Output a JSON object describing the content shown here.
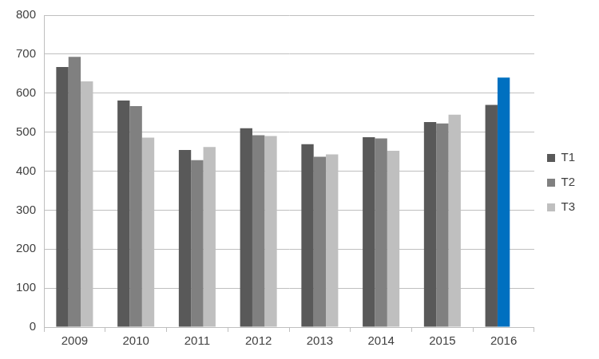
{
  "chart_data": {
    "type": "bar",
    "categories": [
      "2009",
      "2010",
      "2011",
      "2012",
      "2013",
      "2014",
      "2015",
      "2016"
    ],
    "series": [
      {
        "name": "T1",
        "color": "#595959",
        "values": [
          667,
          581,
          454,
          510,
          469,
          487,
          526,
          570
        ]
      },
      {
        "name": "T2",
        "color": "#808080",
        "colors": [
          "#808080",
          "#808080",
          "#808080",
          "#808080",
          "#808080",
          "#808080",
          "#808080",
          "#0070c0"
        ],
        "values": [
          693,
          567,
          428,
          492,
          437,
          484,
          522,
          640
        ]
      },
      {
        "name": "T3",
        "color": "#bfbfbf",
        "values": [
          630,
          486,
          462,
          490,
          443,
          452,
          545,
          null
        ]
      }
    ],
    "ylim": [
      0,
      800
    ],
    "yticks": [
      0,
      100,
      200,
      300,
      400,
      500,
      600,
      700,
      800
    ],
    "grid": true,
    "legend": "right"
  }
}
